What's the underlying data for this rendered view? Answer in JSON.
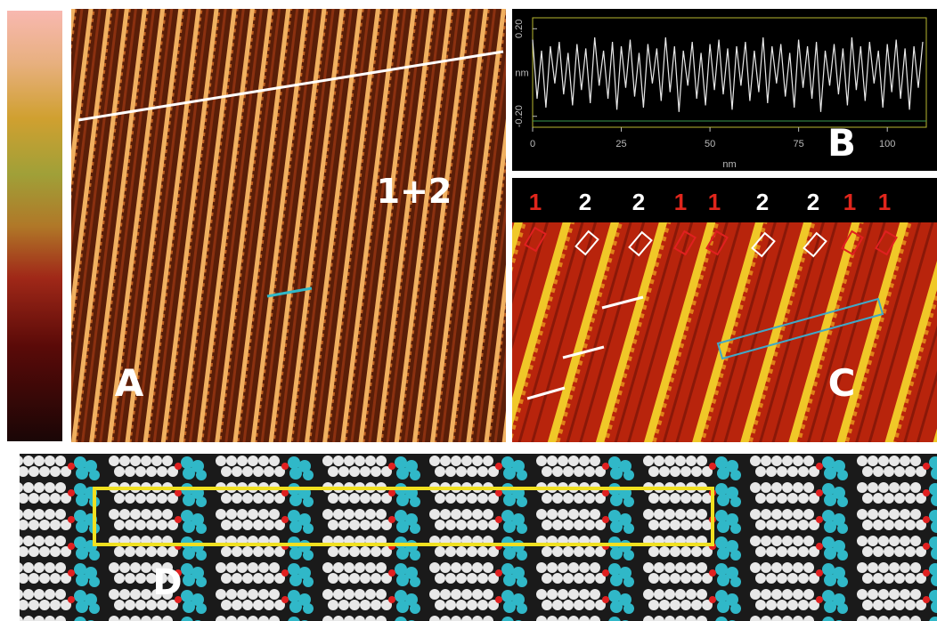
{
  "panels": {
    "a": {
      "label": "A",
      "annotation": "1+2"
    },
    "b": {
      "label": "B"
    },
    "c": {
      "label": "C",
      "row_labels": [
        {
          "text": "1",
          "color": "#e0261c"
        },
        {
          "text": "2",
          "color": "#ffffff"
        },
        {
          "text": "2",
          "color": "#ffffff"
        },
        {
          "text": "1",
          "color": "#e0261c"
        },
        {
          "text": "1",
          "color": "#e0261c"
        },
        {
          "text": "2",
          "color": "#ffffff"
        },
        {
          "text": "2",
          "color": "#ffffff"
        },
        {
          "text": "1",
          "color": "#e0261c"
        },
        {
          "text": "1",
          "color": "#e0261c"
        }
      ]
    },
    "d": {
      "label": "D"
    }
  },
  "chart_data": {
    "type": "line",
    "x_label": "nm",
    "y_label": "nm",
    "x": [
      0,
      1.25,
      2.5,
      3.75,
      5,
      6.25,
      7.5,
      8.75,
      10,
      11.25,
      12.5,
      13.75,
      15,
      16.25,
      17.5,
      18.75,
      20,
      21.25,
      22.5,
      23.75,
      25,
      26.25,
      27.5,
      28.75,
      30,
      31.25,
      32.5,
      33.75,
      35,
      36.25,
      37.5,
      38.75,
      40,
      41.25,
      42.5,
      43.75,
      45,
      46.25,
      47.5,
      48.75,
      50,
      51.25,
      52.5,
      53.75,
      55,
      56.25,
      57.5,
      58.75,
      60,
      61.25,
      62.5,
      63.75,
      65,
      66.25,
      67.5,
      68.75,
      70,
      71.25,
      72.5,
      73.75,
      75,
      76.25,
      77.5,
      78.75,
      80,
      81.25,
      82.5,
      83.75,
      85,
      86.25,
      87.5,
      88.75,
      90,
      91.25,
      92.5,
      93.75,
      95,
      96.25,
      97.5,
      98.75,
      100,
      101.25,
      102.5,
      103.75,
      105,
      106.25,
      107.5,
      108.75,
      110
    ],
    "series": [
      {
        "color": "#e8e8e8",
        "values": [
          0.15,
          -0.12,
          0.1,
          -0.16,
          0.12,
          -0.05,
          0.14,
          -0.1,
          0.09,
          -0.15,
          0.13,
          -0.08,
          0.11,
          -0.14,
          0.16,
          -0.06,
          0.1,
          -0.12,
          0.14,
          -0.17,
          0.12,
          -0.07,
          0.15,
          -0.11,
          0.09,
          -0.16,
          0.13,
          -0.05,
          0.11,
          -0.13,
          0.16,
          -0.09,
          0.12,
          -0.18,
          0.1,
          -0.06,
          0.14,
          -0.12,
          0.09,
          -0.15,
          0.13,
          -0.08,
          0.15,
          -0.1,
          0.11,
          -0.17,
          0.12,
          -0.06,
          0.14,
          -0.13,
          0.1,
          -0.09,
          0.16,
          -0.14,
          0.12,
          -0.05,
          0.13,
          -0.11,
          0.09,
          -0.16,
          0.15,
          -0.07,
          0.12,
          -0.12,
          0.14,
          -0.18,
          0.1,
          -0.06,
          0.13,
          -0.1,
          0.11,
          -0.15,
          0.16,
          -0.08,
          0.12,
          -0.13,
          0.14,
          -0.05,
          0.1,
          -0.16,
          0.13,
          -0.09,
          0.15,
          -0.12,
          0.11,
          -0.17,
          0.12,
          -0.07,
          0.14
        ]
      }
    ],
    "xlim": [
      0,
      111
    ],
    "ylim": [
      -0.25,
      0.25
    ],
    "xticks": [
      0,
      25,
      50,
      75,
      100
    ],
    "yticks": [
      {
        "value": -0.2,
        "label": "-0.20"
      },
      {
        "value": 0.2,
        "label": "0.20"
      }
    ]
  }
}
